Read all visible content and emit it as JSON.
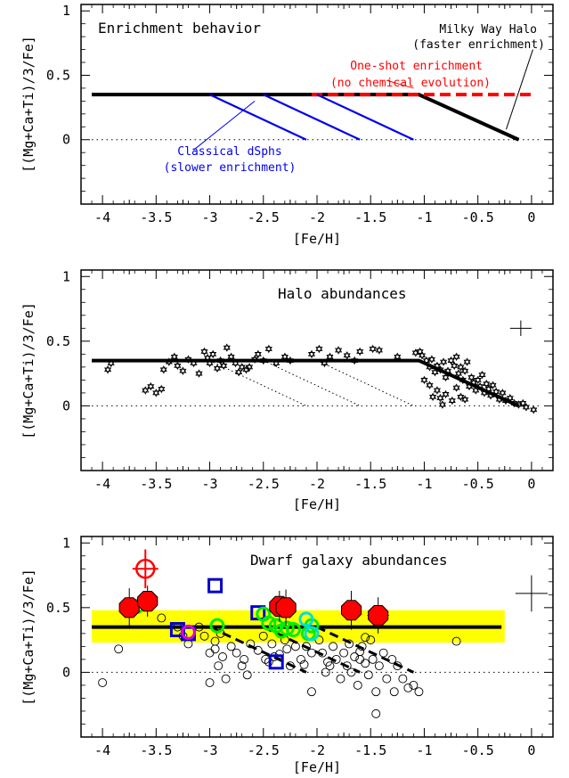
{
  "colors": {
    "black": "#000000",
    "blue": "#0000ee",
    "red": "#ff0000",
    "yellow": "#ffff00",
    "green": "#00ee00",
    "cyan": "#00dddd",
    "magenta": "#dd00dd",
    "marker_red": "#ff0000",
    "grey_dots": "#000000"
  },
  "chart_data": [
    {
      "type": "line",
      "title": "Enrichment behavior",
      "xlabel": "[Fe/H]",
      "ylabel": "[(Mg+Ca+Ti)/3/Fe]",
      "xlim": [
        -4.2,
        0.2
      ],
      "ylim": [
        -0.5,
        1.05
      ],
      "xticks": [
        "-4",
        "-3.5",
        "-3",
        "-2.5",
        "-2",
        "-1.5",
        "-1",
        "-0.5",
        "0"
      ],
      "yticks": [
        "0",
        "0.5",
        "1"
      ],
      "annotations": {
        "milky_way_1": "Milky Way Halo",
        "milky_way_2": "(faster enrichment)",
        "oneshot_1": "One-shot enrichment",
        "oneshot_2": "(no chemical evolution)",
        "dsph_1": "Classical dSphs",
        "dsph_2": "(slower enrichment)"
      },
      "series": [
        {
          "style": "black-thick",
          "x": [
            -4.1,
            -1.05,
            -0.12
          ],
          "y": [
            0.35,
            0.35,
            0.0
          ]
        },
        {
          "style": "red-dashed",
          "x": [
            -2.05,
            0.0
          ],
          "y": [
            0.35,
            0.35
          ]
        },
        {
          "style": "blue",
          "x": [
            -3.0,
            -2.1
          ],
          "y": [
            0.35,
            0.0
          ]
        },
        {
          "style": "blue",
          "x": [
            -2.5,
            -1.6
          ],
          "y": [
            0.35,
            0.0
          ]
        },
        {
          "style": "blue",
          "x": [
            -2.0,
            -1.1
          ],
          "y": [
            0.35,
            0.0
          ]
        }
      ]
    },
    {
      "type": "scatter",
      "title": "Halo abundances",
      "xlabel": "[Fe/H]",
      "ylabel": "[(Mg+Ca+Ti)/3/Fe]",
      "xlim": [
        -4.2,
        0.2
      ],
      "ylim": [
        -0.5,
        1.05
      ],
      "xticks": [
        "-4",
        "-3.5",
        "-3",
        "-2.5",
        "-2",
        "-1.5",
        "-1",
        "-0.5",
        "0"
      ],
      "yticks": [
        "0",
        "0.5",
        "1"
      ],
      "error_bar": {
        "x": -0.1,
        "y": 0.6,
        "dx": 0.1,
        "dy": 0.06
      },
      "model_line": {
        "x": [
          -4.1,
          -1.05,
          -0.12
        ],
        "y": [
          0.35,
          0.35,
          0.0
        ]
      },
      "dotted_lines": [
        {
          "x": [
            -3.0,
            -2.1
          ],
          "y": [
            0.35,
            0.0
          ]
        },
        {
          "x": [
            -2.5,
            -1.6
          ],
          "y": [
            0.35,
            0.0
          ]
        },
        {
          "x": [
            -2.0,
            -1.1
          ],
          "y": [
            0.35,
            0.0
          ]
        }
      ],
      "stars": [
        [
          -3.95,
          0.28
        ],
        [
          -3.92,
          0.33
        ],
        [
          -3.6,
          0.12
        ],
        [
          -3.55,
          0.15
        ],
        [
          -3.5,
          0.1
        ],
        [
          -3.45,
          0.13
        ],
        [
          -3.43,
          0.28
        ],
        [
          -3.38,
          0.34
        ],
        [
          -3.33,
          0.38
        ],
        [
          -3.3,
          0.31
        ],
        [
          -3.25,
          0.27
        ],
        [
          -3.2,
          0.36
        ],
        [
          -3.15,
          0.33
        ],
        [
          -3.1,
          0.25
        ],
        [
          -3.05,
          0.42
        ],
        [
          -3.02,
          0.37
        ],
        [
          -3.0,
          0.33
        ],
        [
          -2.97,
          0.4
        ],
        [
          -2.93,
          0.29
        ],
        [
          -2.9,
          0.35
        ],
        [
          -2.87,
          0.31
        ],
        [
          -2.84,
          0.45
        ],
        [
          -2.8,
          0.38
        ],
        [
          -2.76,
          0.33
        ],
        [
          -2.73,
          0.26
        ],
        [
          -2.7,
          0.3
        ],
        [
          -2.66,
          0.28
        ],
        [
          -2.63,
          0.3
        ],
        [
          -2.58,
          0.36
        ],
        [
          -2.55,
          0.4
        ],
        [
          -2.5,
          0.35
        ],
        [
          -2.45,
          0.44
        ],
        [
          -2.38,
          0.33
        ],
        [
          -2.3,
          0.38
        ],
        [
          -2.25,
          0.35
        ],
        [
          -2.05,
          0.4
        ],
        [
          -1.98,
          0.44
        ],
        [
          -1.93,
          0.33
        ],
        [
          -1.88,
          0.38
        ],
        [
          -1.8,
          0.43
        ],
        [
          -1.72,
          0.39
        ],
        [
          -1.65,
          0.35
        ],
        [
          -1.6,
          0.42
        ],
        [
          -1.48,
          0.44
        ],
        [
          -1.42,
          0.43
        ],
        [
          -1.25,
          0.38
        ],
        [
          -1.08,
          0.41
        ],
        [
          -1.04,
          0.42
        ],
        [
          -1.02,
          0.39
        ],
        [
          -0.98,
          0.35
        ],
        [
          -0.95,
          0.3
        ],
        [
          -0.93,
          0.36
        ],
        [
          -0.9,
          0.26
        ],
        [
          -0.88,
          0.31
        ],
        [
          -0.85,
          0.28
        ],
        [
          -0.82,
          0.34
        ],
        [
          -0.8,
          0.22
        ],
        [
          -0.78,
          0.27
        ],
        [
          -0.75,
          0.35
        ],
        [
          -0.72,
          0.31
        ],
        [
          -0.7,
          0.38
        ],
        [
          -0.68,
          0.25
        ],
        [
          -0.66,
          0.3
        ],
        [
          -0.64,
          0.2
        ],
        [
          -0.62,
          0.27
        ],
        [
          -0.6,
          0.34
        ],
        [
          -0.58,
          0.15
        ],
        [
          -0.56,
          0.22
        ],
        [
          -0.54,
          0.18
        ],
        [
          -0.52,
          0.12
        ],
        [
          -0.5,
          0.2
        ],
        [
          -0.48,
          0.15
        ],
        [
          -0.46,
          0.24
        ],
        [
          -0.44,
          0.1
        ],
        [
          -0.42,
          0.17
        ],
        [
          -0.4,
          0.13
        ],
        [
          -0.38,
          0.08
        ],
        [
          -0.36,
          0.16
        ],
        [
          -0.33,
          0.11
        ],
        [
          -0.3,
          0.05
        ],
        [
          -0.27,
          0.1
        ],
        [
          -0.24,
          0.04
        ],
        [
          -0.2,
          0.06
        ],
        [
          -0.16,
          0.02
        ],
        [
          -0.12,
          0.01
        ],
        [
          -0.08,
          0.02
        ],
        [
          -0.05,
          -0.01
        ],
        [
          0.02,
          -0.03
        ],
        [
          -0.92,
          0.07
        ],
        [
          -0.88,
          0.12
        ],
        [
          -0.85,
          0.06
        ],
        [
          -0.83,
          0.01
        ],
        [
          -0.8,
          0.09
        ],
        [
          -0.74,
          0.04
        ],
        [
          -0.95,
          0.16
        ],
        [
          -0.7,
          0.14
        ],
        [
          -0.66,
          0.07
        ],
        [
          -1.0,
          0.2
        ],
        [
          -0.62,
          0.05
        ]
      ]
    },
    {
      "type": "scatter",
      "title": "Dwarf galaxy abundances",
      "xlabel": "[Fe/H]",
      "ylabel": "[(Mg+Ca+Ti)/3/Fe]",
      "xlim": [
        -4.2,
        0.2
      ],
      "ylim": [
        -0.5,
        1.05
      ],
      "xticks": [
        "-4",
        "-3.5",
        "-3",
        "-2.5",
        "-2",
        "-1.5",
        "-1",
        "-0.5",
        "0"
      ],
      "yticks": [
        "0",
        "0.5",
        "1"
      ],
      "band": {
        "x": [
          -4.1,
          -0.25
        ],
        "y": [
          0.23,
          0.48
        ]
      },
      "model_line": {
        "x": [
          -4.1,
          -0.28
        ],
        "y": [
          0.35,
          0.35
        ]
      },
      "dashed_lines": [
        {
          "x": [
            -3.0,
            -2.1
          ],
          "y": [
            0.35,
            0.0
          ]
        },
        {
          "x": [
            -2.5,
            -1.6
          ],
          "y": [
            0.35,
            0.0
          ]
        },
        {
          "x": [
            -2.0,
            -1.1
          ],
          "y": [
            0.35,
            0.0
          ]
        }
      ],
      "error_bar": {
        "x": 0.0,
        "y": 0.61,
        "dx": 0.15,
        "dy": 0.14
      },
      "red_target": {
        "x": -3.6,
        "y": 0.8,
        "dx": 0.12,
        "dy": 0.15
      },
      "red_octagons": [
        {
          "x": -3.75,
          "y": 0.5,
          "dx": 0.05,
          "dy": 0.15
        },
        {
          "x": -3.58,
          "y": 0.55,
          "dx": 0.05,
          "dy": 0.12
        },
        {
          "x": -2.35,
          "y": 0.51,
          "dx": 0.06,
          "dy": 0.12
        },
        {
          "x": -2.29,
          "y": 0.5,
          "dx": 0.06,
          "dy": 0.14
        },
        {
          "x": -1.68,
          "y": 0.48,
          "dx": 0.08,
          "dy": 0.15
        },
        {
          "x": -1.43,
          "y": 0.44,
          "dx": 0.1,
          "dy": 0.14
        }
      ],
      "blue_squares": [
        [
          -3.3,
          0.33
        ],
        [
          -2.95,
          0.67
        ],
        [
          -2.55,
          0.46
        ],
        [
          -2.38,
          0.08
        ],
        [
          -3.2,
          0.3
        ]
      ],
      "green_circles": [
        [
          -3.68,
          0.51
        ],
        [
          -2.93,
          0.36
        ],
        [
          -2.5,
          0.45
        ],
        [
          -2.45,
          0.38
        ],
        [
          -2.38,
          0.36
        ],
        [
          -2.33,
          0.32
        ],
        [
          -2.28,
          0.34
        ],
        [
          -2.22,
          0.33
        ],
        [
          -2.05,
          0.36
        ],
        [
          -2.08,
          0.3
        ]
      ],
      "cyan_circles": [
        [
          -2.1,
          0.41
        ],
        [
          -2.05,
          0.3
        ]
      ],
      "magenta_circles": [
        [
          -3.2,
          0.31
        ]
      ],
      "open_circles": [
        [
          -4.0,
          -0.08
        ],
        [
          -3.85,
          0.18
        ],
        [
          -3.6,
          0.55
        ],
        [
          -3.45,
          0.42
        ],
        [
          -3.3,
          0.35
        ],
        [
          -3.25,
          0.28
        ],
        [
          -3.2,
          0.22
        ],
        [
          -3.1,
          0.35
        ],
        [
          -3.05,
          0.28
        ],
        [
          -3.0,
          0.15
        ],
        [
          -2.95,
          0.24
        ],
        [
          -2.9,
          0.3
        ],
        [
          -2.95,
          0.18
        ],
        [
          -2.88,
          0.12
        ],
        [
          -2.92,
          0.05
        ],
        [
          -2.85,
          -0.05
        ],
        [
          -3.0,
          -0.08
        ],
        [
          -2.8,
          0.2
        ],
        [
          -2.75,
          0.15
        ],
        [
          -2.7,
          0.05
        ],
        [
          -2.68,
          0.1
        ],
        [
          -2.65,
          -0.02
        ],
        [
          -2.62,
          0.22
        ],
        [
          -2.55,
          0.17
        ],
        [
          -2.5,
          0.28
        ],
        [
          -2.48,
          0.1
        ],
        [
          -2.45,
          0.08
        ],
        [
          -2.42,
          0.22
        ],
        [
          -2.4,
          0.12
        ],
        [
          -2.35,
          0.14
        ],
        [
          -2.3,
          0.25
        ],
        [
          -2.28,
          0.18
        ],
        [
          -2.25,
          0.05
        ],
        [
          -2.2,
          0.2
        ],
        [
          -2.15,
          0.1
        ],
        [
          -2.12,
          0.06
        ],
        [
          -2.05,
          -0.15
        ],
        [
          -1.98,
          0.25
        ],
        [
          -1.95,
          0.15
        ],
        [
          -1.9,
          0.08
        ],
        [
          -1.85,
          0.2
        ],
        [
          -1.82,
          0.1
        ],
        [
          -1.78,
          -0.05
        ],
        [
          -1.75,
          0.15
        ],
        [
          -1.72,
          0.05
        ],
        [
          -1.7,
          0.22
        ],
        [
          -1.68,
          0.0
        ],
        [
          -1.65,
          0.12
        ],
        [
          -1.62,
          -0.1
        ],
        [
          -1.6,
          0.1
        ],
        [
          -1.58,
          0.2
        ],
        [
          -1.55,
          0.07
        ],
        [
          -1.52,
          -0.02
        ],
        [
          -1.5,
          0.25
        ],
        [
          -1.48,
          0.1
        ],
        [
          -1.45,
          -0.15
        ],
        [
          -1.42,
          0.05
        ],
        [
          -1.38,
          0.15
        ],
        [
          -1.35,
          -0.05
        ],
        [
          -1.3,
          0.1
        ],
        [
          -1.28,
          -0.15
        ],
        [
          -1.25,
          0.05
        ],
        [
          -1.2,
          -0.05
        ],
        [
          -1.15,
          -0.12
        ],
        [
          -1.1,
          -0.1
        ],
        [
          -1.05,
          -0.15
        ],
        [
          -1.45,
          -0.32
        ],
        [
          -1.6,
          0.16
        ],
        [
          -1.55,
          0.27
        ],
        [
          -0.7,
          0.24
        ],
        [
          -2.1,
          0.2
        ],
        [
          -2.05,
          0.15
        ],
        [
          -1.92,
          0.0
        ],
        [
          -1.88,
          0.05
        ]
      ]
    }
  ]
}
